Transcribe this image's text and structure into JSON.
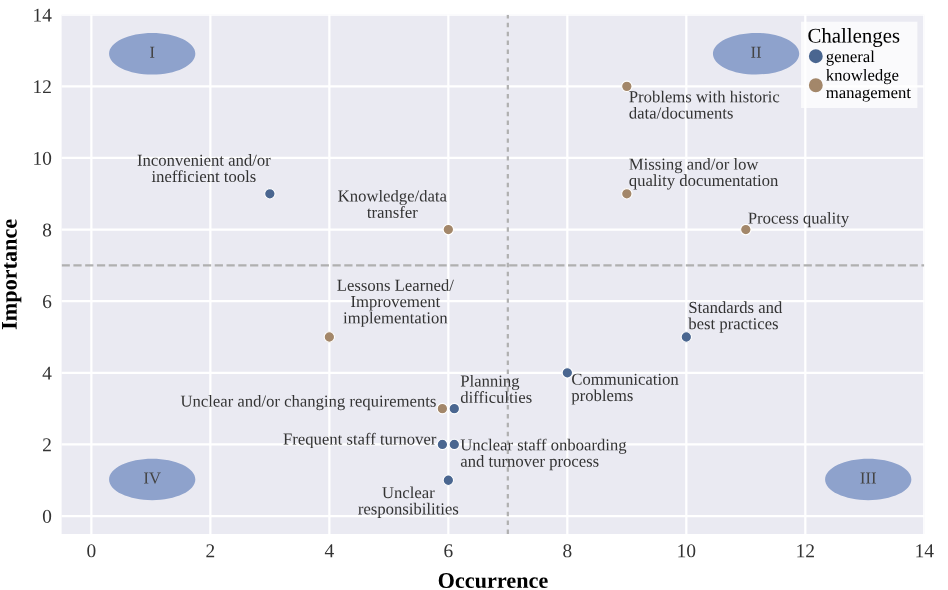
{
  "chart_data": {
    "type": "scatter",
    "xlabel": "Occurrence",
    "ylabel": "Importance",
    "legend_title": "Challenges",
    "legend": "top right",
    "grid": true,
    "marker": "circle",
    "xlim": [
      -0.5,
      14
    ],
    "ylim": [
      -0.5,
      14
    ],
    "xticks": [
      0,
      2,
      4,
      6,
      8,
      10,
      12,
      14
    ],
    "yticks": [
      0,
      2,
      4,
      6,
      8,
      10,
      12,
      14
    ],
    "series": [
      {
        "name": "general",
        "color": "#4a6690",
        "x": [
          3,
          6.1,
          6.1,
          5.9,
          6,
          8,
          10
        ],
        "values": [
          9,
          3,
          2,
          2,
          1,
          4,
          5
        ]
      },
      {
        "name": "knowledge\nmanagement",
        "color": "#a3876a",
        "x": [
          6,
          4,
          5.9,
          9,
          9,
          11
        ],
        "values": [
          8,
          5,
          3,
          12,
          9,
          8
        ]
      }
    ],
    "ref_lines": [
      {
        "axis": "x",
        "value": 7,
        "line_style": "dotted",
        "color": "#b0b0b0"
      },
      {
        "axis": "y",
        "value": 7,
        "line_style": "dashed",
        "color": "#b0b0b0"
      }
    ],
    "annotations": [
      {
        "text": "Inconvenient and/or\ninefficient tools",
        "x": 3,
        "y": 9
      },
      {
        "text": "Knowledge/data\ntransfer",
        "x": 6,
        "y": 8
      },
      {
        "text": "Lessons Learned/\nImprovement\nimplementation",
        "x": 4,
        "y": 5
      },
      {
        "text": "Unclear and/or changing requirements",
        "x": 5.9,
        "y": 3
      },
      {
        "text": "Planning\ndifficulties",
        "x": 6.1,
        "y": 3
      },
      {
        "text": "Frequent staff turnover",
        "x": 5.9,
        "y": 2
      },
      {
        "text": "Unclear staff onboarding\nand turnover process",
        "x": 6.1,
        "y": 2
      },
      {
        "text": "Unclear\nresponsibilities",
        "x": 6,
        "y": 1
      },
      {
        "text": "Communication\nproblems",
        "x": 8,
        "y": 4
      },
      {
        "text": "Standards and\nbest practices",
        "x": 10,
        "y": 5
      },
      {
        "text": "Problems with historic\ndata/documents",
        "x": 9,
        "y": 12
      },
      {
        "text": "Missing and/or low\nquality documentation",
        "x": 9,
        "y": 9
      },
      {
        "text": "Process quality",
        "x": 11,
        "y": 8
      },
      "I",
      "II",
      "III",
      "IV"
    ]
  }
}
